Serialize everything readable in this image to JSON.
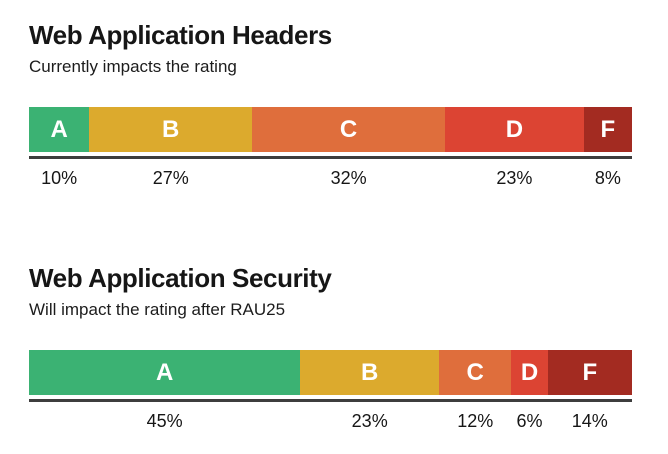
{
  "page": {
    "background": "#ffffff",
    "text_color": "#161616"
  },
  "chart_data": [
    {
      "type": "bar",
      "variant": "horizontal-stacked-percentage",
      "title": "Web Application Headers",
      "subtitle": "Currently impacts the rating",
      "categories": [
        "A",
        "B",
        "C",
        "D",
        "F"
      ],
      "values": [
        10,
        27,
        32,
        23,
        8
      ],
      "value_labels": [
        "10%",
        "27%",
        "32%",
        "23%",
        "8%"
      ],
      "colors": [
        "#3bb273",
        "#dcaa2d",
        "#df6e3c",
        "#dc4433",
        "#a32b21"
      ],
      "segment_label_color": "#ffffff",
      "axis_line_color": "#3d3d3d",
      "xlim": [
        0,
        100
      ],
      "grid": false,
      "legend": "none"
    },
    {
      "type": "bar",
      "variant": "horizontal-stacked-percentage",
      "title": "Web Application Security",
      "subtitle": "Will impact the rating after RAU25",
      "categories": [
        "A",
        "B",
        "C",
        "D",
        "F"
      ],
      "values": [
        45,
        23,
        12,
        6,
        14
      ],
      "value_labels": [
        "45%",
        "23%",
        "12%",
        "6%",
        "14%"
      ],
      "colors": [
        "#3bb273",
        "#dcaa2d",
        "#df6e3c",
        "#dc4433",
        "#a32b21"
      ],
      "segment_label_color": "#ffffff",
      "axis_line_color": "#3d3d3d",
      "xlim": [
        0,
        100
      ],
      "grid": false,
      "legend": "none"
    }
  ]
}
